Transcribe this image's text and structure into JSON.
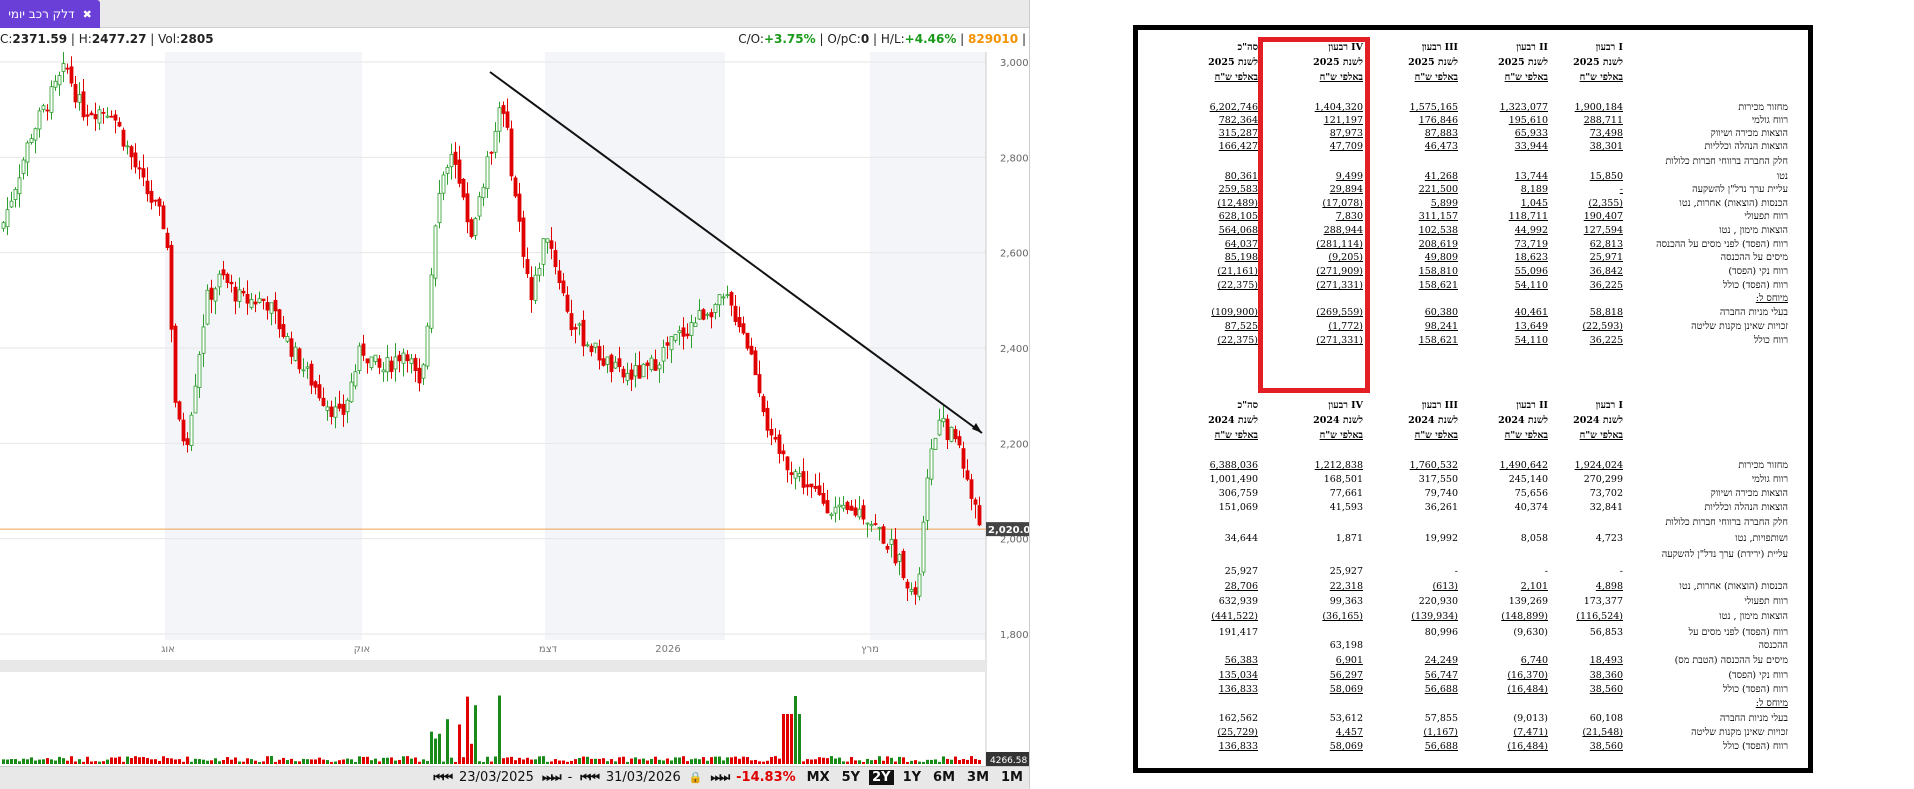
{
  "tab": {
    "label": "דלק רכב יומי",
    "close": "✖"
  },
  "info": {
    "c": "2371.59",
    "h": "2477.27",
    "vol": "2805",
    "co": "+3.75%",
    "opc": "0",
    "hl": "+4.46%",
    "id": "829010"
  },
  "chart_data": {
    "type": "candlestick",
    "y_ticks": [
      "3,000",
      "2,800",
      "2,600",
      "2,400",
      "2,200",
      "2,000",
      "1,800"
    ],
    "x_ticks": [
      "אוג",
      "אוק",
      "דצמ",
      "2026",
      "מרץ"
    ],
    "current_price": "2,020.00",
    "vol_label": "4266.58"
  },
  "bottom": {
    "from": "23/03/2025",
    "to": "31/03/2026",
    "sep": "-",
    "change": "-14.83%",
    "ranges": [
      "MX",
      "5Y",
      "2Y",
      "1Y",
      "6M",
      "3M",
      "1M"
    ],
    "selected": "2Y"
  },
  "doc": {
    "cols": [
      "רבעון I",
      "רבעון II",
      "רבעון III",
      "רבעון IV",
      "סה\"כ"
    ],
    "y2025": "לשנת 2025",
    "y2024": "לשנת 2024",
    "unit": "באלפי ש\"ח",
    "rows2025": [
      {
        "label": "מחזור מכירות",
        "v": [
          "1,900,184",
          "1,323,077",
          "1,575,165",
          "1,404,320",
          "6,202,746"
        ],
        "u": true
      },
      {
        "label": "רווח גולמי",
        "v": [
          "288,711",
          "195,610",
          "176,846",
          "121,197",
          "782,364"
        ],
        "u": true
      },
      {
        "label": "הוצאות מכירה ושיווק",
        "v": [
          "73,498",
          "65,933",
          "87,883",
          "87,973",
          "315,287"
        ],
        "u": true
      },
      {
        "label": "הוצאות הנהלה וכלליות",
        "v": [
          "38,301",
          "33,944",
          "46,473",
          "47,709",
          "166,427"
        ],
        "u": true
      },
      {
        "label": "חלק החברה ברווחי חברות כלולות",
        "v": [
          "",
          "",
          "",
          "",
          ""
        ]
      },
      {
        "label": "נטו",
        "v": [
          "15,850",
          "13,744",
          "41,268",
          "9,499",
          "80,361"
        ],
        "u": true
      },
      {
        "label": "עליית ערך נדל\"ן להשקעה",
        "v": [
          "-",
          "8,189",
          "221,500",
          "29,894",
          "259,583"
        ],
        "u": true
      },
      {
        "label": "הכנסות (הוצאות) אחרות, נטו",
        "v": [
          "(2,355)",
          "1,045",
          "5,899",
          "(17,078)",
          "(12,489)"
        ],
        "u": true
      },
      {
        "label": "רווח תפעולי",
        "v": [
          "190,407",
          "118,711",
          "311,157",
          "7,830",
          "628,105"
        ],
        "u": true
      },
      {
        "label": "הוצאות מימון , נטו",
        "v": [
          "127,594",
          "44,992",
          "102,538",
          "288,944",
          "564,068"
        ],
        "u": true
      },
      {
        "label": "רווח (הפסד) לפני מסים על ההכנסה",
        "v": [
          "62,813",
          "73,719",
          "208,619",
          "(281,114)",
          "64,037"
        ],
        "u": true
      },
      {
        "label": "מיסים על ההכנסה",
        "v": [
          "25,971",
          "18,623",
          "49,809",
          "(9,205)",
          "85,198"
        ],
        "u": true
      },
      {
        "label": "רווח נקי (הפסד)",
        "v": [
          "36,842",
          "55,096",
          "158,810",
          "(271,909)",
          "(21,161)"
        ],
        "u": true
      },
      {
        "label": "רווח (הפסד) כולל",
        "v": [
          "36,225",
          "54,110",
          "158,621",
          "(271,331)",
          "(22,375)"
        ],
        "u": true
      },
      {
        "label": "מיוחס ל:",
        "v": [
          "",
          "",
          "",
          "",
          ""
        ],
        "ul": true
      },
      {
        "label": "בעלי מניות החברה",
        "v": [
          "58,818",
          "40,461",
          "60,380",
          "(269,559)",
          "(109,900)"
        ],
        "u": true
      },
      {
        "label": "זכויות שאינן מקנות שליטה",
        "v": [
          "(22,593)",
          "13,649",
          "98,241",
          "(1,772)",
          "87,525"
        ],
        "u": true
      },
      {
        "label": "רווח כולל",
        "v": [
          "36,225",
          "54,110",
          "158,621",
          "(271,331)",
          "(22,375)"
        ],
        "u": true
      }
    ],
    "rows2024": [
      {
        "label": "מחזור מכירות",
        "v": [
          "1,924,024",
          "1,490,642",
          "1,760,532",
          "1,212,838",
          "6,388,036"
        ],
        "u": true
      },
      {
        "label": "רווח גולמי",
        "v": [
          "270,299",
          "245,140",
          "317,550",
          "168,501",
          "1,001,490"
        ]
      },
      {
        "label": "הוצאות מכירה ושיווק",
        "v": [
          "73,702",
          "75,656",
          "79,740",
          "77,661",
          "306,759"
        ]
      },
      {
        "label": "הוצאות הנהלה וכלליות",
        "v": [
          "32,841",
          "40,374",
          "36,261",
          "41,593",
          "151,069"
        ]
      },
      {
        "label": "חלק החברה ברווחי חברות כלולות",
        "v": [
          "",
          "",
          "",
          "",
          ""
        ]
      },
      {
        "label": "ושותפויות, נטו",
        "v": [
          "4,723",
          "8,058",
          "19,992",
          "1,871",
          "34,644"
        ]
      },
      {
        "label": "עליית (ירידת) ערך נדל\"ן להשקעה",
        "v": [
          "",
          "",
          "",
          "",
          ""
        ]
      },
      {
        "label": "",
        "v": [
          "-",
          "-",
          "-",
          "25,927",
          "25,927"
        ]
      },
      {
        "label": "הכנסות (הוצאות) אחרות, נטו",
        "v": [
          "4,898",
          "2,101",
          "(613)",
          "22,318",
          "28,706"
        ],
        "u": true
      },
      {
        "label": "רווח תפעולי",
        "v": [
          "173,377",
          "139,269",
          "220,930",
          "99,363",
          "632,939"
        ]
      },
      {
        "label": "הוצאות מימון , נטו",
        "v": [
          "(116,524)",
          "(148,899)",
          "(139,934)",
          "(36,165)",
          "(441,522)"
        ],
        "u": true
      },
      {
        "label": "רווח (הפסד) לפני מסים על",
        "v": [
          "56,853",
          "(9,630)",
          "80,996",
          "",
          "191,417"
        ]
      },
      {
        "label": "ההכנסה",
        "v": [
          "",
          "",
          "",
          "63,198",
          ""
        ]
      },
      {
        "label": "מיסים על ההכנסה (הטבת מס)",
        "v": [
          "18,493",
          "6,740",
          "24,249",
          "6,901",
          "56,383"
        ],
        "u": true
      },
      {
        "label": "רווח נקי (הפסד)",
        "v": [
          "38,360",
          "(16,370)",
          "56,747",
          "56,297",
          "135,034"
        ],
        "u": true
      },
      {
        "label": "רווח (הפסד) כולל",
        "v": [
          "38,560",
          "(16,484)",
          "56,688",
          "58,069",
          "136,833"
        ],
        "u": true
      },
      {
        "label": "מיוחס ל:",
        "v": [
          "",
          "",
          "",
          "",
          ""
        ],
        "ul": true
      },
      {
        "label": "בעלי מניות החברה",
        "v": [
          "60,108",
          "(9,013)",
          "57,855",
          "53,612",
          "162,562"
        ]
      },
      {
        "label": "זכויות שאינן מקנות שליטה",
        "v": [
          "(21,548)",
          "(7,471)",
          "(1,167)",
          "4,457",
          "(25,729)"
        ],
        "u": true
      },
      {
        "label": "רווח (הפסד) כולל",
        "v": [
          "38,560",
          "(16,484)",
          "56,688",
          "58,069",
          "136,833"
        ],
        "u": true
      }
    ]
  }
}
